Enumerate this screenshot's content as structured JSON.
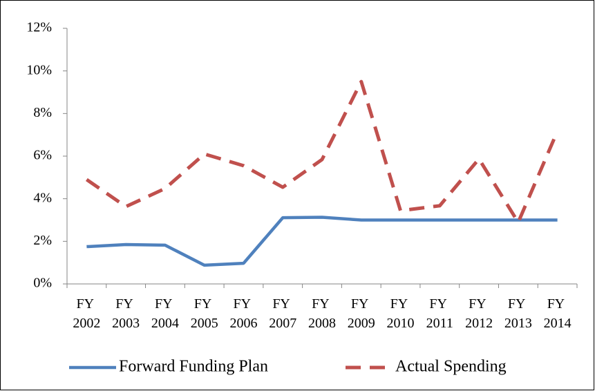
{
  "chart_data": {
    "type": "line",
    "categories": [
      "FY 2002",
      "FY 2003",
      "FY 2004",
      "FY 2005",
      "FY 2006",
      "FY 2007",
      "FY 2008",
      "FY 2009",
      "FY 2010",
      "FY 2011",
      "FY 2012",
      "FY 2013",
      "FY 2014"
    ],
    "series": [
      {
        "name": "Forward Funding Plan",
        "color": "#4f81bd",
        "dash": false,
        "values": [
          1.75,
          1.85,
          1.82,
          0.88,
          0.97,
          3.11,
          3.13,
          3.0,
          3.0,
          3.0,
          3.0,
          3.0,
          3.0
        ]
      },
      {
        "name": "Actual Spending",
        "color": "#c0504d",
        "dash": true,
        "values": [
          4.9,
          3.63,
          4.48,
          6.1,
          5.55,
          4.54,
          5.84,
          9.5,
          3.44,
          3.67,
          5.87,
          2.89,
          7.17
        ]
      }
    ],
    "ylim": [
      0,
      12
    ],
    "yticks": [
      {
        "value": 0,
        "label": "0%"
      },
      {
        "value": 2,
        "label": "2%"
      },
      {
        "value": 4,
        "label": "4%"
      },
      {
        "value": 6,
        "label": "6%"
      },
      {
        "value": 8,
        "label": "8%"
      },
      {
        "value": 10,
        "label": "10%"
      },
      {
        "value": 12,
        "label": "12%"
      }
    ],
    "grid": false,
    "legend": "bottom"
  }
}
